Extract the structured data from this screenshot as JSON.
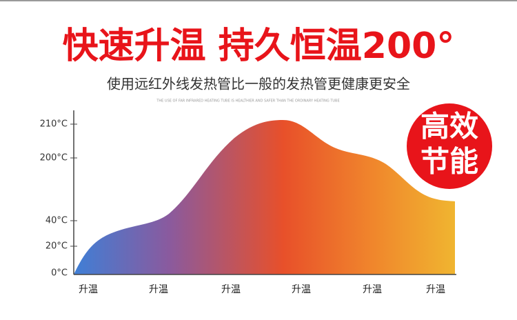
{
  "header": {
    "title": "快速升温 持久恒温200°",
    "subtitle": "使用远红外线发热管比一般的发热管更健康更安全",
    "note": "THE USE OF FAR INFRARED HEATING TUBE IS HEALTHIER AND SAFER THAN THE ORDINARY HEATING TUBE"
  },
  "badge": {
    "line1": "高效",
    "line2": "节能"
  },
  "axis": {
    "y_labels": [
      "210°C",
      "200°C",
      "40°C",
      "20°C",
      "0°C"
    ],
    "x_labels": [
      "升温",
      "升温",
      "升温",
      "升温",
      "升温",
      "升温"
    ]
  }
}
